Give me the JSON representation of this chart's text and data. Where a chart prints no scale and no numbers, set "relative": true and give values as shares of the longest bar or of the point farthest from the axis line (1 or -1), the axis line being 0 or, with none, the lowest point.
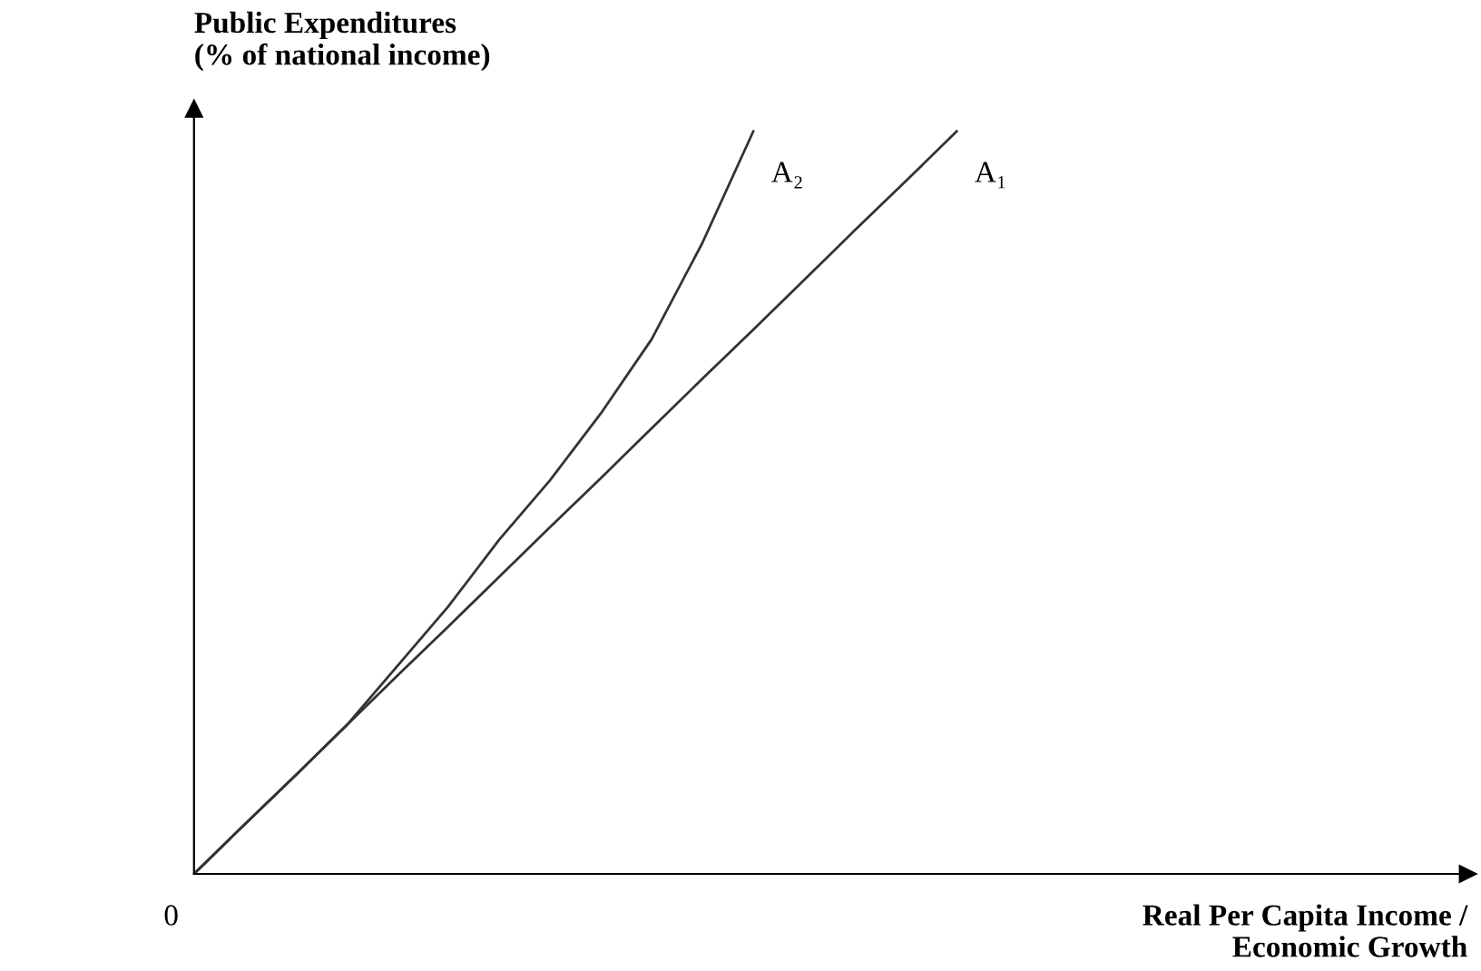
{
  "chart_data": {
    "type": "line",
    "relative": true,
    "ylabel": "Public Expenditures\n(% of national income)",
    "annotations": [
      "0",
      "Real Per Capita Income /\nEconomic Growth"
    ],
    "legend": false,
    "marker": "none",
    "line_style": "solid",
    "categories": [
      null,
      null,
      null,
      null,
      null,
      null,
      null,
      null,
      null,
      null,
      null,
      null,
      null,
      null,
      null,
      null
    ],
    "series": [
      {
        "name": "A₂",
        "color": "#333333",
        "values": [
          0,
          0.067,
          0.133,
          0.2,
          0.28,
          0.36,
          0.45,
          0.53,
          0.62,
          0.72,
          0.85,
          1,
          null,
          null,
          null,
          null
        ]
      },
      {
        "name": "A₁",
        "color": "#333333",
        "values": [
          0,
          0.067,
          0.133,
          0.2,
          0.267,
          0.333,
          0.4,
          0.467,
          0.533,
          0.6,
          0.667,
          0.733,
          0.8,
          0.867,
          0.933,
          1
        ]
      }
    ]
  }
}
